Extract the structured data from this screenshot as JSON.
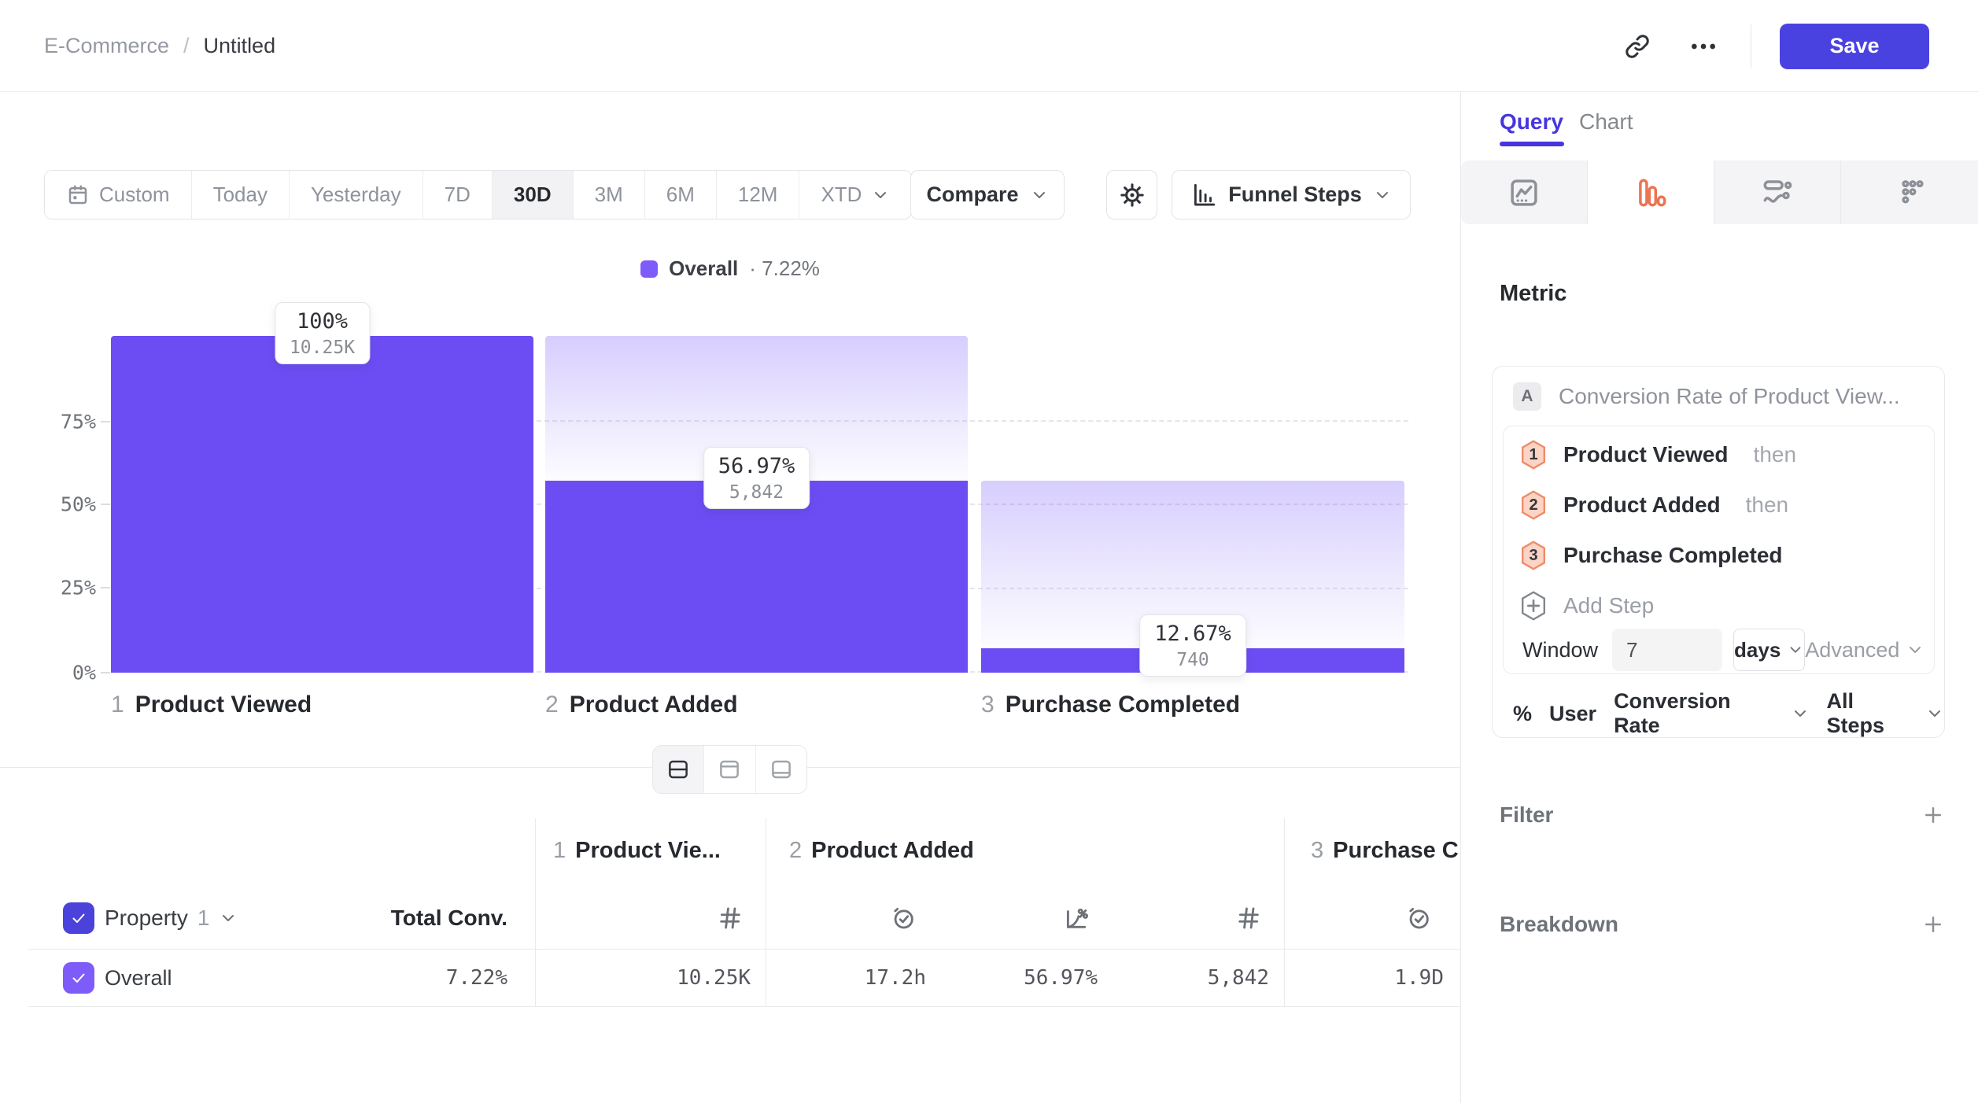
{
  "header": {
    "breadcrumb": {
      "section": "E-Commerce",
      "separator": "/",
      "title": "Untitled"
    },
    "save_label": "Save"
  },
  "toolbar": {
    "ranges": [
      {
        "label": "Custom"
      },
      {
        "label": "Today"
      },
      {
        "label": "Yesterday"
      },
      {
        "label": "7D"
      },
      {
        "label": "30D"
      },
      {
        "label": "3M"
      },
      {
        "label": "6M"
      },
      {
        "label": "12M"
      },
      {
        "label": "XTD"
      }
    ],
    "active_range": "30D",
    "compare_label": "Compare",
    "view_label": "Funnel Steps"
  },
  "legend": {
    "series": "Overall",
    "separator": "·",
    "value": "7.22%"
  },
  "chart_data": {
    "type": "bar",
    "subtype": "funnel",
    "title": "Overall · 7.22%",
    "y_ticks": [
      "75%",
      "50%",
      "25%",
      "0%"
    ],
    "ylim": [
      0,
      100
    ],
    "grid": "dashed-horizontal",
    "steps": [
      {
        "index": "1",
        "name": "Product Viewed",
        "rate_label": "100%",
        "count_label": "10.25K",
        "pct_of_first": 100,
        "prev_pct_of_first": 100
      },
      {
        "index": "2",
        "name": "Product Added",
        "rate_label": "56.97%",
        "count_label": "5,842",
        "pct_of_first": 56.97,
        "prev_pct_of_first": 100
      },
      {
        "index": "3",
        "name": "Purchase Completed",
        "rate_label": "12.67%",
        "count_label": "740",
        "pct_of_first": 7.22,
        "prev_pct_of_first": 56.97
      }
    ]
  },
  "view_switch": {
    "options": [
      "split-view",
      "chart-only",
      "table-only"
    ],
    "active": "split-view"
  },
  "table": {
    "property_label": "Property",
    "property_index": "1",
    "total_conv_label": "Total Conv.",
    "col_groups": [
      {
        "step": "1",
        "name": "Product Vie...",
        "metrics": [
          "count"
        ]
      },
      {
        "step": "2",
        "name": "Product Added",
        "metrics": [
          "avg-time",
          "conversion-rate",
          "count"
        ]
      },
      {
        "step": "3",
        "name": "Purchase C",
        "metrics": [
          "avg-time"
        ]
      }
    ],
    "row": {
      "name": "Overall",
      "total_conv": "7.22%",
      "values": [
        "10.25K",
        "17.2h",
        "56.97%",
        "5,842",
        "1.9D"
      ]
    }
  },
  "sidebar": {
    "tabs": [
      {
        "label": "Query"
      },
      {
        "label": "Chart"
      }
    ],
    "active_tab": "Query",
    "chart_types": [
      "segmentation",
      "funnel",
      "journeys",
      "retention"
    ],
    "active_chart_type": "funnel",
    "metric": {
      "heading": "Metric",
      "badge": "A",
      "title": "Conversion Rate of Product View...",
      "steps": [
        {
          "num": "1",
          "name": "Product Viewed",
          "connector": "then"
        },
        {
          "num": "2",
          "name": "Product Added",
          "connector": "then"
        },
        {
          "num": "3",
          "name": "Purchase Completed",
          "connector": ""
        }
      ],
      "add_step_label": "Add Step",
      "window_label": "Window",
      "window_value": "7",
      "window_unit": "days",
      "advanced_label": "Advanced",
      "measure": {
        "prefix": "%",
        "entity": "User",
        "metric": "Conversion Rate",
        "scope": "All Steps"
      }
    },
    "filter_label": "Filter",
    "breakdown_label": "Breakdown"
  },
  "colors": {
    "accent_indigo": "#4A42E0",
    "bar_purple": "#6C4DF3",
    "legend_purple": "#7D5CFA",
    "funnel_orange": "#ED7452"
  }
}
